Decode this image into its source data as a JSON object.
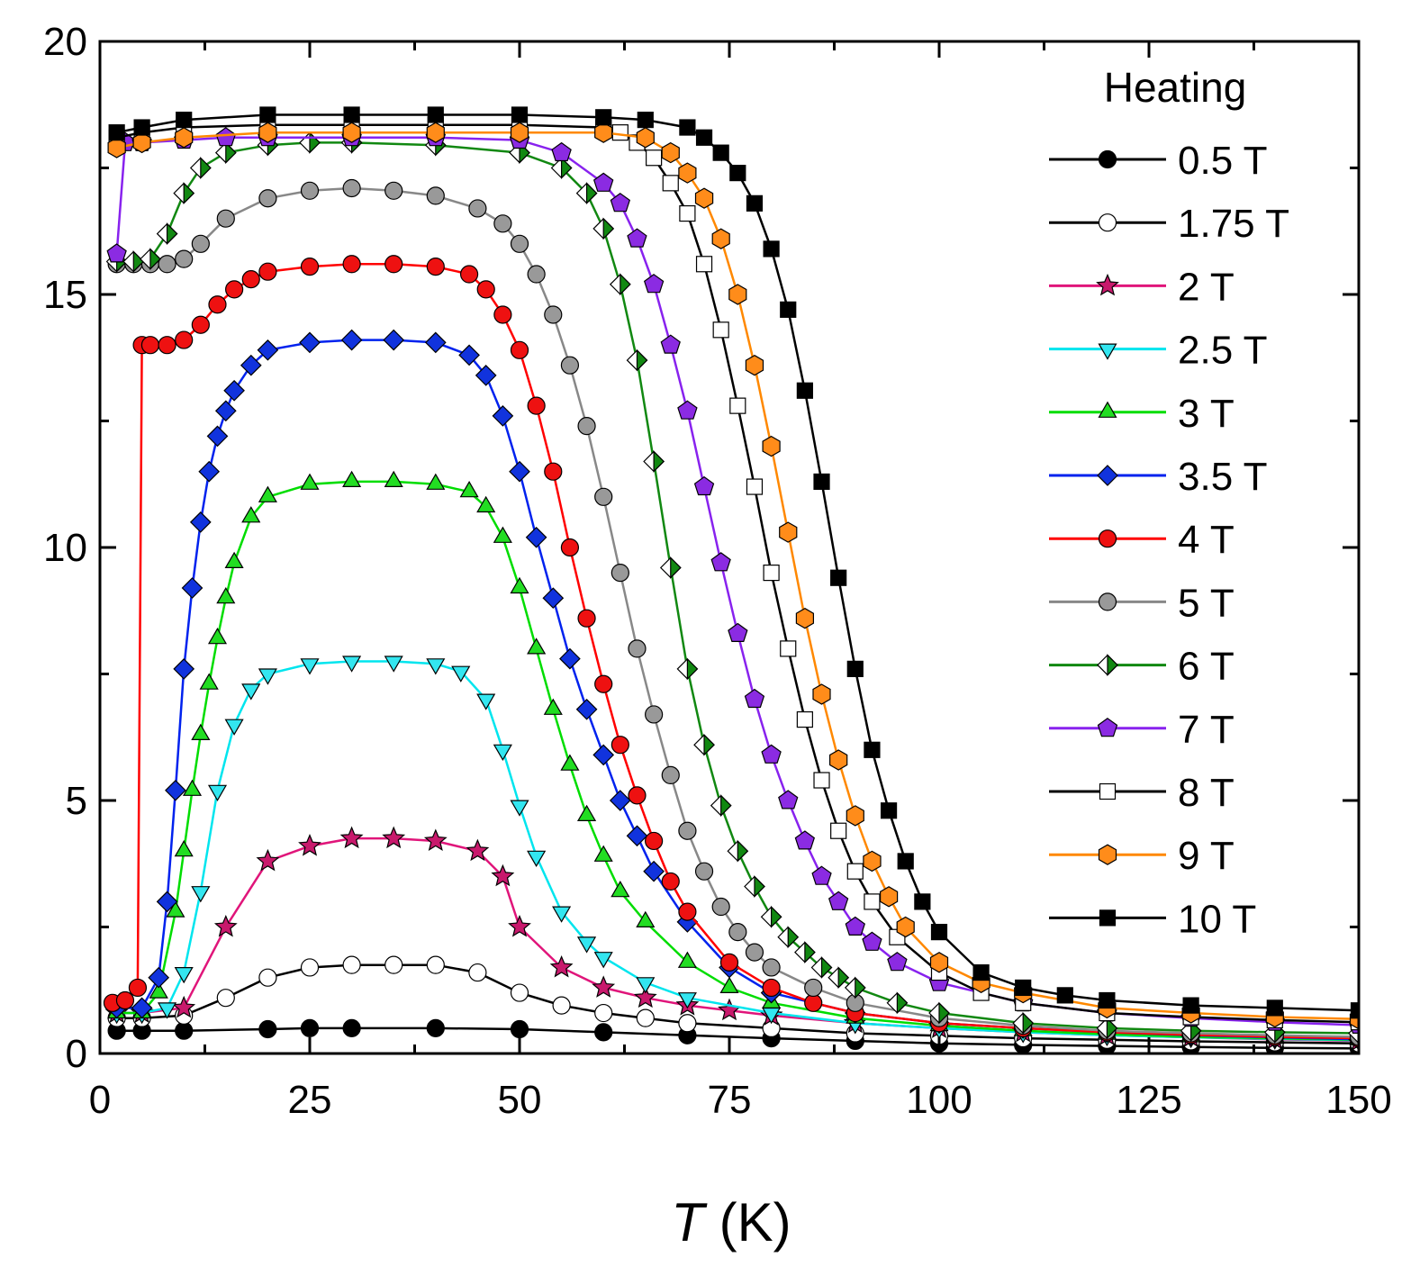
{
  "chart_data": {
    "type": "scatter",
    "title": "",
    "xlabel_symbol": "T",
    "xlabel_unit": " (K)",
    "ylabel": "",
    "xlim": [
      0,
      150
    ],
    "ylim": [
      0,
      20
    ],
    "x_ticks": [
      "0",
      "25",
      "50",
      "75",
      "100",
      "125",
      "150"
    ],
    "y_ticks": [
      "0",
      "5",
      "10",
      "15",
      "20"
    ],
    "legend_title": "Heating",
    "legend_position": "top-right",
    "grid": false,
    "series": [
      {
        "name": "0.5 T",
        "color": "#000000",
        "fill": "#000000",
        "marker": "circle",
        "x": [
          2,
          5,
          10,
          20,
          25,
          30,
          40,
          50,
          60,
          70,
          80,
          90,
          100,
          110,
          120,
          130,
          140,
          150
        ],
        "y": [
          0.45,
          0.45,
          0.45,
          0.48,
          0.5,
          0.5,
          0.5,
          0.48,
          0.42,
          0.36,
          0.3,
          0.25,
          0.2,
          0.17,
          0.15,
          0.13,
          0.11,
          0.1
        ]
      },
      {
        "name": "1.75 T",
        "color": "#000000",
        "fill": "#ffffff",
        "marker": "circle",
        "x": [
          2,
          5,
          10,
          15,
          20,
          25,
          30,
          35,
          40,
          45,
          50,
          55,
          60,
          65,
          70,
          80,
          90,
          100,
          110,
          120,
          130,
          140,
          150
        ],
        "y": [
          0.7,
          0.7,
          0.75,
          1.1,
          1.5,
          1.7,
          1.75,
          1.75,
          1.75,
          1.6,
          1.2,
          0.95,
          0.8,
          0.7,
          0.6,
          0.5,
          0.4,
          0.35,
          0.3,
          0.27,
          0.24,
          0.22,
          0.2
        ]
      },
      {
        "name": "2 T",
        "color": "#e0157a",
        "fill": "#c8196c",
        "marker": "star",
        "x": [
          2,
          5,
          10,
          15,
          20,
          25,
          30,
          35,
          40,
          45,
          48,
          50,
          55,
          60,
          65,
          70,
          75,
          80,
          90,
          100,
          110,
          120,
          130,
          140,
          150
        ],
        "y": [
          0.8,
          0.8,
          0.9,
          2.5,
          3.8,
          4.1,
          4.25,
          4.25,
          4.2,
          4.0,
          3.5,
          2.5,
          1.7,
          1.3,
          1.1,
          0.95,
          0.85,
          0.75,
          0.6,
          0.5,
          0.42,
          0.36,
          0.32,
          0.28,
          0.25
        ]
      },
      {
        "name": "2.5 T",
        "color": "#00e5ee",
        "fill": "#33e6f0",
        "marker": "triangle-down",
        "x": [
          2,
          5,
          8,
          10,
          12,
          14,
          16,
          18,
          20,
          25,
          30,
          35,
          40,
          43,
          46,
          48,
          50,
          52,
          55,
          58,
          60,
          65,
          70,
          80,
          90,
          100,
          110,
          120,
          130,
          140,
          150
        ],
        "y": [
          0.8,
          0.8,
          0.9,
          1.6,
          3.2,
          5.2,
          6.5,
          7.2,
          7.5,
          7.7,
          7.75,
          7.75,
          7.7,
          7.55,
          7.0,
          6.0,
          4.9,
          3.9,
          2.8,
          2.2,
          1.9,
          1.4,
          1.1,
          0.8,
          0.6,
          0.5,
          0.42,
          0.36,
          0.32,
          0.29,
          0.26
        ]
      },
      {
        "name": "3 T",
        "color": "#00dd00",
        "fill": "#22dd22",
        "marker": "triangle-up",
        "x": [
          2,
          5,
          7,
          9,
          10,
          11,
          12,
          13,
          14,
          15,
          16,
          18,
          20,
          25,
          30,
          35,
          40,
          44,
          46,
          48,
          50,
          52,
          54,
          56,
          58,
          60,
          62,
          65,
          70,
          75,
          80,
          90,
          100,
          110,
          120,
          130,
          140,
          150
        ],
        "y": [
          0.8,
          0.8,
          1.2,
          2.8,
          4.0,
          5.2,
          6.3,
          7.3,
          8.2,
          9.0,
          9.7,
          10.6,
          11.0,
          11.25,
          11.3,
          11.3,
          11.25,
          11.1,
          10.8,
          10.2,
          9.2,
          8.0,
          6.8,
          5.7,
          4.7,
          3.9,
          3.2,
          2.6,
          1.8,
          1.3,
          1.0,
          0.7,
          0.55,
          0.45,
          0.38,
          0.33,
          0.3,
          0.27
        ]
      },
      {
        "name": "3.5 T",
        "color": "#0022ee",
        "fill": "#1133dd",
        "marker": "diamond",
        "x": [
          2,
          5,
          7,
          8,
          9,
          10,
          11,
          12,
          13,
          14,
          15,
          16,
          18,
          20,
          25,
          30,
          35,
          40,
          44,
          46,
          48,
          50,
          52,
          54,
          56,
          58,
          60,
          62,
          64,
          66,
          70,
          75,
          80,
          90,
          100,
          110,
          120,
          130,
          140,
          150
        ],
        "y": [
          0.9,
          0.9,
          1.5,
          3.0,
          5.2,
          7.6,
          9.2,
          10.5,
          11.5,
          12.2,
          12.7,
          13.1,
          13.6,
          13.9,
          14.05,
          14.1,
          14.1,
          14.05,
          13.8,
          13.4,
          12.6,
          11.5,
          10.2,
          9.0,
          7.8,
          6.8,
          5.9,
          5.0,
          4.3,
          3.6,
          2.6,
          1.7,
          1.2,
          0.8,
          0.6,
          0.5,
          0.42,
          0.36,
          0.32,
          0.28
        ]
      },
      {
        "name": "4 T",
        "color": "#ff0000",
        "fill": "#ee1111",
        "marker": "circle",
        "x": [
          1.5,
          3,
          4.5,
          5,
          6,
          8,
          10,
          12,
          14,
          16,
          18,
          20,
          25,
          30,
          35,
          40,
          44,
          46,
          48,
          50,
          52,
          54,
          56,
          58,
          60,
          62,
          64,
          66,
          68,
          70,
          75,
          80,
          85,
          90,
          100,
          110,
          120,
          130,
          140,
          150
        ],
        "y": [
          1.0,
          1.05,
          1.3,
          14.0,
          14.0,
          14.0,
          14.1,
          14.4,
          14.8,
          15.1,
          15.3,
          15.45,
          15.55,
          15.6,
          15.6,
          15.55,
          15.4,
          15.1,
          14.6,
          13.9,
          12.8,
          11.5,
          10.0,
          8.6,
          7.3,
          6.1,
          5.1,
          4.2,
          3.4,
          2.8,
          1.8,
          1.3,
          1.0,
          0.8,
          0.6,
          0.5,
          0.42,
          0.37,
          0.33,
          0.3
        ]
      },
      {
        "name": "5 T",
        "color": "#888888",
        "fill": "#999999",
        "marker": "circle",
        "x": [
          2,
          4,
          6,
          8,
          10,
          12,
          15,
          20,
          25,
          30,
          35,
          40,
          45,
          48,
          50,
          52,
          54,
          56,
          58,
          60,
          62,
          64,
          66,
          68,
          70,
          72,
          74,
          76,
          78,
          80,
          85,
          90,
          100,
          110,
          120,
          130,
          140,
          150
        ],
        "y": [
          15.6,
          15.6,
          15.6,
          15.6,
          15.7,
          16.0,
          16.5,
          16.9,
          17.05,
          17.1,
          17.05,
          16.95,
          16.7,
          16.4,
          16.0,
          15.4,
          14.6,
          13.6,
          12.4,
          11.0,
          9.5,
          8.0,
          6.7,
          5.5,
          4.4,
          3.6,
          2.9,
          2.4,
          2.0,
          1.7,
          1.3,
          1.0,
          0.7,
          0.55,
          0.45,
          0.4,
          0.36,
          0.33
        ]
      },
      {
        "name": "6 T",
        "color": "#118811",
        "fill": "#118811",
        "marker": "half-diamond",
        "x": [
          2,
          4,
          6,
          8,
          10,
          12,
          15,
          20,
          25,
          30,
          40,
          50,
          55,
          58,
          60,
          62,
          64,
          66,
          68,
          70,
          72,
          74,
          76,
          78,
          80,
          82,
          84,
          86,
          88,
          90,
          95,
          100,
          110,
          120,
          130,
          140,
          150
        ],
        "y": [
          15.65,
          15.65,
          15.7,
          16.2,
          17.0,
          17.5,
          17.8,
          17.95,
          18.0,
          18.0,
          17.95,
          17.8,
          17.5,
          17.0,
          16.3,
          15.2,
          13.7,
          11.7,
          9.6,
          7.6,
          6.1,
          4.9,
          4.0,
          3.3,
          2.7,
          2.3,
          2.0,
          1.7,
          1.5,
          1.3,
          1.0,
          0.8,
          0.6,
          0.5,
          0.45,
          0.42,
          0.4
        ]
      },
      {
        "name": "7 T",
        "color": "#8822ee",
        "fill": "#8b2be2",
        "marker": "pentagon",
        "x": [
          2,
          3,
          5,
          10,
          15,
          20,
          30,
          40,
          50,
          55,
          60,
          62,
          64,
          66,
          68,
          70,
          72,
          74,
          76,
          78,
          80,
          82,
          84,
          86,
          88,
          90,
          92,
          95,
          100,
          110,
          120,
          130,
          140,
          150
        ],
        "y": [
          15.8,
          18.0,
          18.0,
          18.05,
          18.1,
          18.1,
          18.1,
          18.1,
          18.05,
          17.8,
          17.2,
          16.8,
          16.1,
          15.2,
          14.0,
          12.7,
          11.2,
          9.7,
          8.3,
          7.0,
          5.9,
          5.0,
          4.2,
          3.5,
          3.0,
          2.5,
          2.2,
          1.8,
          1.4,
          1.0,
          0.8,
          0.7,
          0.62,
          0.56
        ]
      },
      {
        "name": "8 T",
        "color": "#000000",
        "fill": "#ffffff",
        "marker": "square",
        "x": [
          2,
          5,
          10,
          20,
          30,
          40,
          50,
          60,
          62,
          64,
          66,
          68,
          70,
          72,
          74,
          76,
          78,
          80,
          82,
          84,
          86,
          88,
          90,
          92,
          95,
          100,
          105,
          110,
          120,
          130,
          140,
          150
        ],
        "y": [
          18.1,
          18.2,
          18.3,
          18.35,
          18.35,
          18.35,
          18.35,
          18.3,
          18.2,
          18.0,
          17.7,
          17.2,
          16.6,
          15.6,
          14.3,
          12.8,
          11.2,
          9.5,
          8.0,
          6.6,
          5.4,
          4.4,
          3.6,
          3.0,
          2.3,
          1.6,
          1.2,
          1.0,
          0.8,
          0.72,
          0.66,
          0.62
        ]
      },
      {
        "name": "9 T",
        "color": "#ff8800",
        "fill": "#ff8c1a",
        "marker": "hexagon",
        "x": [
          2,
          5,
          10,
          20,
          30,
          40,
          50,
          60,
          65,
          68,
          70,
          72,
          74,
          76,
          78,
          80,
          82,
          84,
          86,
          88,
          90,
          92,
          94,
          96,
          100,
          105,
          110,
          120,
          130,
          140,
          150
        ],
        "y": [
          17.9,
          18.0,
          18.1,
          18.2,
          18.2,
          18.2,
          18.2,
          18.2,
          18.1,
          17.8,
          17.4,
          16.9,
          16.1,
          15.0,
          13.6,
          12.0,
          10.3,
          8.6,
          7.1,
          5.8,
          4.7,
          3.8,
          3.1,
          2.5,
          1.8,
          1.4,
          1.2,
          0.9,
          0.8,
          0.72,
          0.68
        ]
      },
      {
        "name": "10 T",
        "color": "#000000",
        "fill": "#000000",
        "marker": "square",
        "x": [
          2,
          5,
          10,
          20,
          30,
          40,
          50,
          60,
          65,
          70,
          72,
          74,
          76,
          78,
          80,
          82,
          84,
          86,
          88,
          90,
          92,
          94,
          96,
          98,
          100,
          105,
          110,
          115,
          120,
          130,
          140,
          150
        ],
        "y": [
          18.2,
          18.3,
          18.45,
          18.55,
          18.55,
          18.55,
          18.55,
          18.5,
          18.45,
          18.3,
          18.1,
          17.8,
          17.4,
          16.8,
          15.9,
          14.7,
          13.1,
          11.3,
          9.4,
          7.6,
          6.0,
          4.8,
          3.8,
          3.0,
          2.4,
          1.6,
          1.3,
          1.15,
          1.05,
          0.95,
          0.9,
          0.85
        ]
      }
    ]
  }
}
